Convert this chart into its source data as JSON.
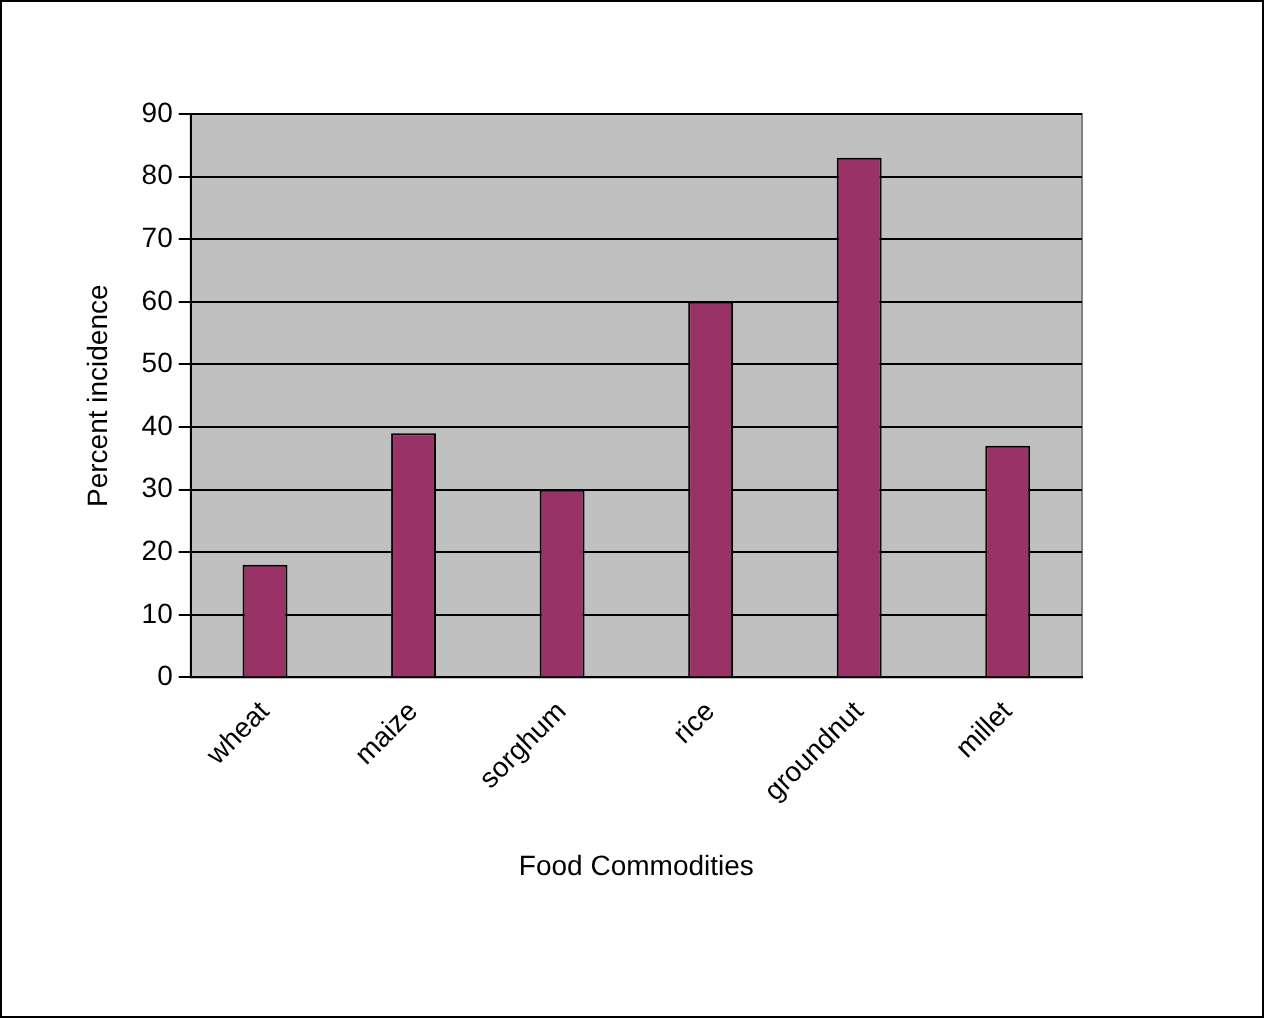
{
  "chart_data": {
    "type": "bar",
    "xlabel": "Food Commodities",
    "ylabel": "Percent incidence",
    "categories": [
      "wheat",
      "maize",
      "sorghum",
      "rice",
      "groundnut",
      "millet"
    ],
    "values": [
      18,
      39,
      30,
      60,
      83,
      37
    ],
    "color": "#993366",
    "ylim": [
      0,
      90
    ],
    "yticks": [
      0,
      10,
      20,
      30,
      40,
      50,
      60,
      70,
      80,
      90
    ],
    "grid": "y",
    "legend": false
  }
}
